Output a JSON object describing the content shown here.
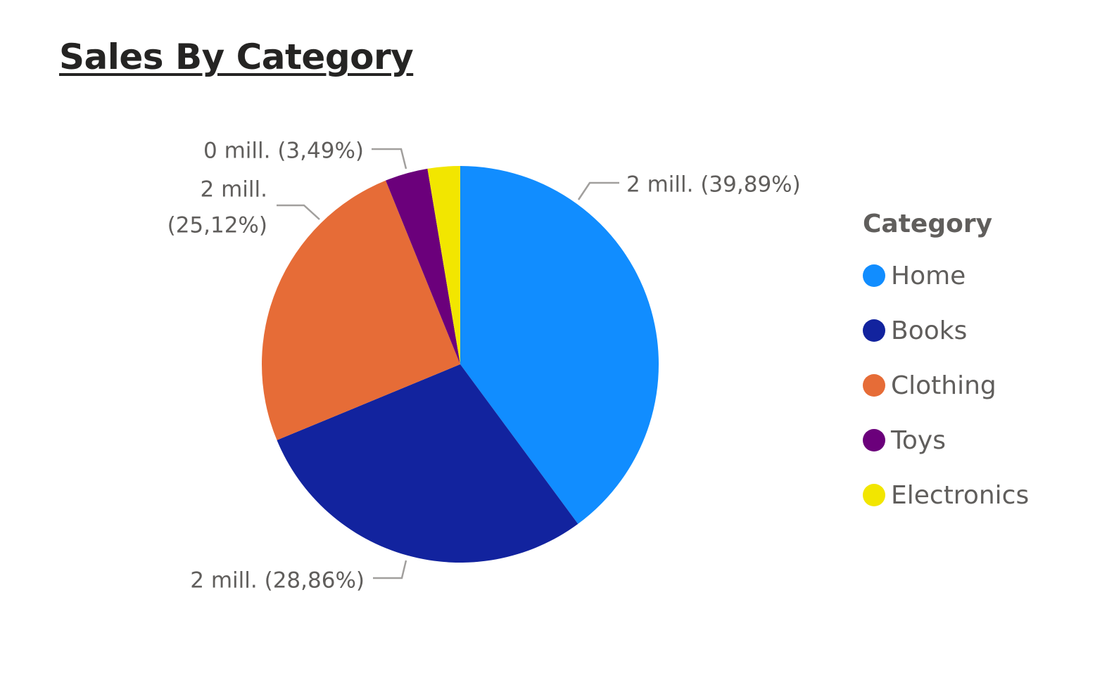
{
  "chart_data": {
    "type": "pie",
    "title": "Sales By Category",
    "legend_title": "Category",
    "legend_position": "right",
    "categories": [
      "Home",
      "Books",
      "Clothing",
      "Toys",
      "Electronics"
    ],
    "percent": [
      39.89,
      28.86,
      25.12,
      3.49,
      2.64
    ],
    "colors": [
      "#118DFF",
      "#12239E",
      "#E66C37",
      "#6B007B",
      "#F2E600"
    ],
    "data_labels": [
      {
        "category": "Home",
        "value_text": "2 mill.",
        "percent_text": "(39,89%)"
      },
      {
        "category": "Books",
        "value_text": "2 mill.",
        "percent_text": "(28,86%)"
      },
      {
        "category": "Clothing",
        "value_text": "2 mill.",
        "percent_text": "(25,12%)"
      },
      {
        "category": "Toys",
        "value_text": "0 mill.",
        "percent_text": "(3,49%)"
      }
    ]
  }
}
